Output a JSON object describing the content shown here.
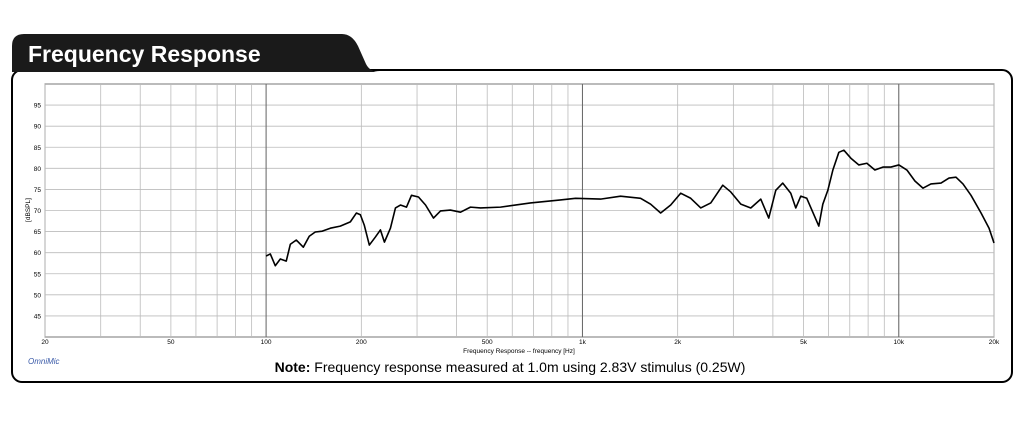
{
  "chart_data": {
    "type": "line",
    "title": "Frequency Response",
    "xlabel": "Frequency Response -- frequency [Hz]",
    "ylabel": "[dBSPL]",
    "note_label": "Note:",
    "note": "Frequency response measured at 1.0m using 2.83V stimulus (0.25W)",
    "source": "OmniMic",
    "xscale": "log",
    "xlim": [
      20,
      20000
    ],
    "ylim": [
      40,
      100
    ],
    "grid": true,
    "xticks": [
      20,
      50,
      100,
      200,
      500,
      {
        "value": 1000,
        "label": "1k"
      },
      {
        "value": 2000,
        "label": "2k"
      },
      {
        "value": 5000,
        "label": "5k"
      },
      {
        "value": 10000,
        "label": "10k"
      },
      {
        "value": 20000,
        "label": "20k"
      }
    ],
    "xgrid": [
      30,
      40,
      60,
      70,
      80,
      90,
      300,
      400,
      600,
      700,
      800,
      900,
      3000,
      4000,
      6000,
      7000,
      8000,
      9000
    ],
    "xmajor": [
      100,
      1000,
      10000
    ],
    "yticks": [
      45,
      50,
      55,
      60,
      65,
      70,
      75,
      80,
      85,
      90,
      95
    ],
    "series": [
      {
        "name": "Frequency Response",
        "color": "#000000",
        "x": [
          100,
          103.1,
          106.9,
          110.9,
          115.8,
          119.3,
          124.6,
          131.1,
          136.9,
          143,
          150.5,
          159.6,
          171.6,
          184.6,
          192.9,
          198.6,
          204.4,
          212,
          221.5,
          229.8,
          236.6,
          247.2,
          256.4,
          265.9,
          277.8,
          288.1,
          303.2,
          319.1,
          338.2,
          355.9,
          382.5,
          411.6,
          442.6,
          476.2,
          550.8,
          685.2,
          852.6,
          951.1,
          1141,
          1320,
          1527,
          1643,
          1767,
          1901,
          2044,
          2199,
          2366,
          2545,
          2777,
          2944,
          3167,
          3405,
          3662,
          3881,
          4085,
          4298,
          4556,
          4725,
          4900,
          5119,
          5348,
          5587,
          5753,
          5967,
          6189,
          6465,
          6705,
          7056,
          7480,
          7928,
          8404,
          8908,
          9444,
          10009,
          10610,
          11247,
          11922,
          12637,
          13597,
          14413,
          15166,
          15958,
          16917,
          18202,
          19294,
          20000
        ],
        "values": [
          59.2,
          59.7,
          56.9,
          58.5,
          58.0,
          62.0,
          63.0,
          61.3,
          63.9,
          64.9,
          65.1,
          65.8,
          66.3,
          67.3,
          69.4,
          69.0,
          66.5,
          61.8,
          63.7,
          65.4,
          62.5,
          65.8,
          70.6,
          71.3,
          70.8,
          73.6,
          73.2,
          71.3,
          68.2,
          69.9,
          70.1,
          69.6,
          70.8,
          70.6,
          70.8,
          71.8,
          72.5,
          72.9,
          72.7,
          73.4,
          72.9,
          71.5,
          69.4,
          71.3,
          74.1,
          72.9,
          70.6,
          71.8,
          76.0,
          74.4,
          71.5,
          70.6,
          72.7,
          68.2,
          74.8,
          76.5,
          74.1,
          70.6,
          73.4,
          72.9,
          69.6,
          66.3,
          71.5,
          74.8,
          79.6,
          83.8,
          84.3,
          82.4,
          80.8,
          81.2,
          79.6,
          80.3,
          80.3,
          80.8,
          79.6,
          77.0,
          75.3,
          76.3,
          76.5,
          77.7,
          77.9,
          76.3,
          73.6,
          69.4,
          65.8,
          62.3
        ]
      }
    ]
  }
}
